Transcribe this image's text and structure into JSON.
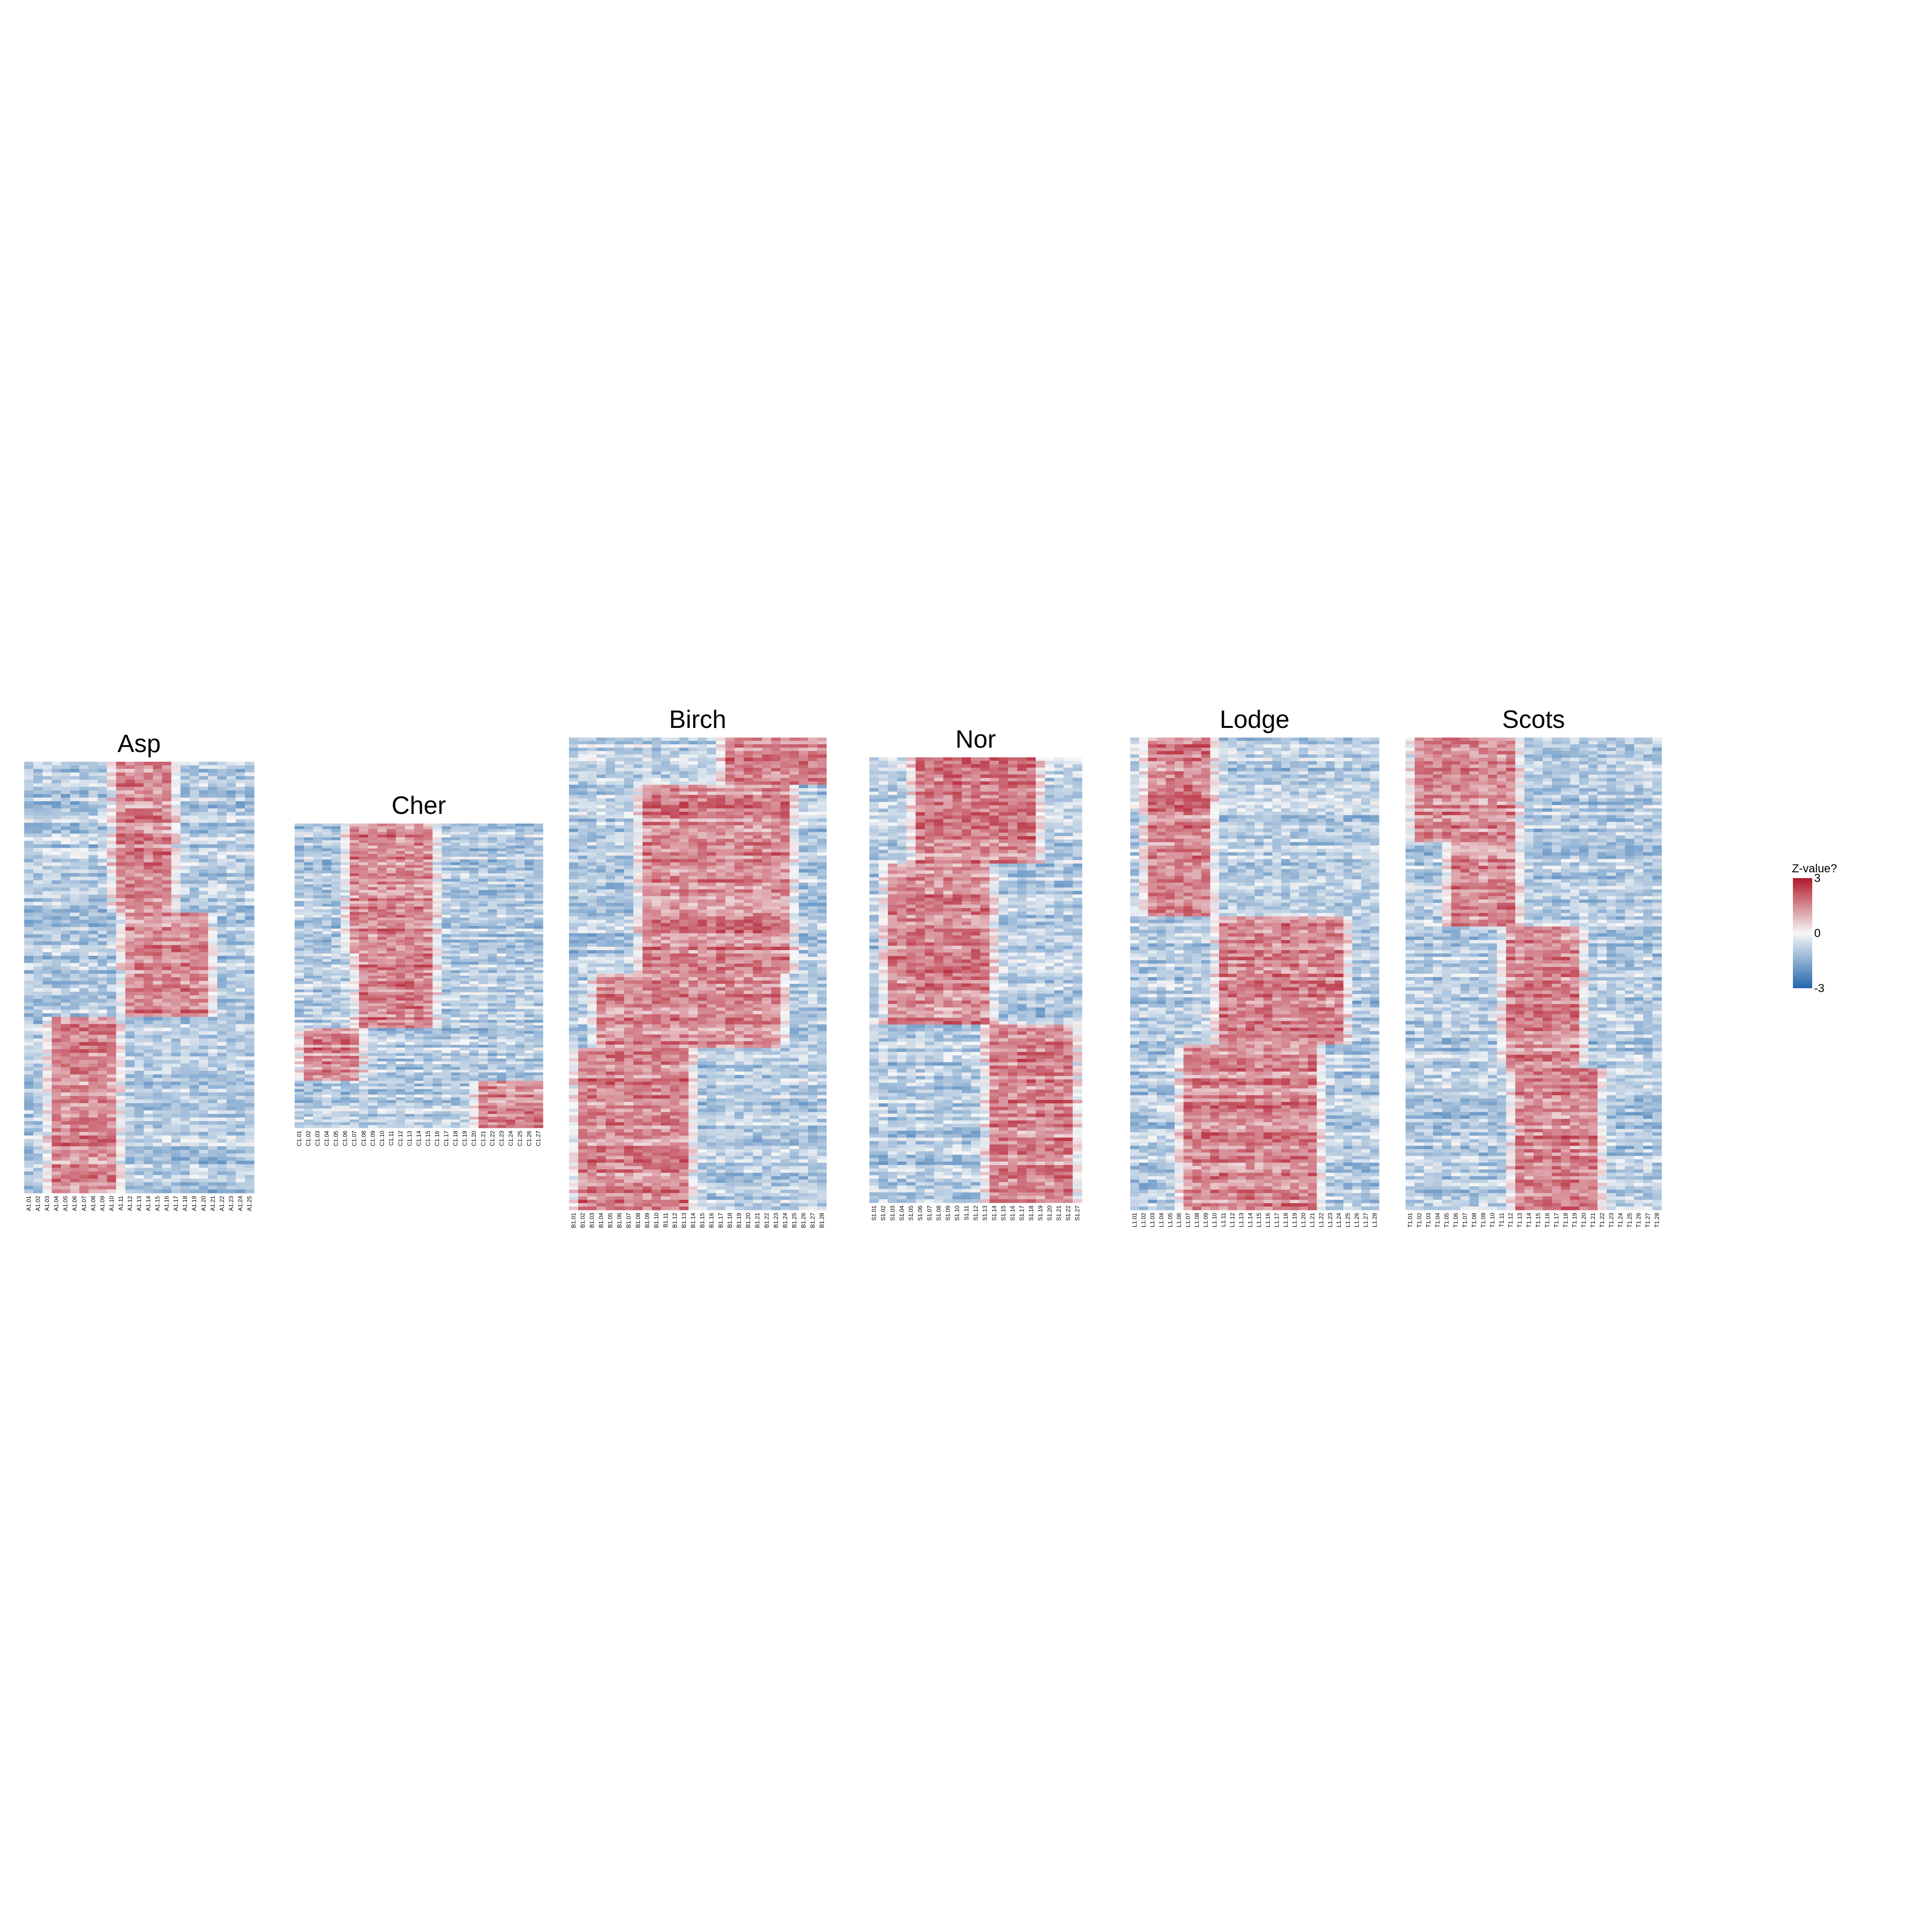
{
  "chart_data": [
    {
      "type": "heatmap",
      "title": "Asp",
      "columns": [
        "A1.01",
        "A1.02",
        "A1.03",
        "A1.04",
        "A1.05",
        "A1.06",
        "A1.07",
        "A1.08",
        "A1.09",
        "A1.10",
        "A1.11",
        "A1.12",
        "A1.13",
        "A1.14",
        "A1.15",
        "A1.16",
        "A1.17",
        "A1.18",
        "A1.19",
        "A1.20",
        "A1.21",
        "A1.22",
        "A1.23",
        "A1.24",
        "A1.25"
      ],
      "row_count": 120,
      "clusters": [
        {
          "rows": [
            0.0,
            0.35
          ],
          "high_cols": [
            10,
            15
          ]
        },
        {
          "rows": [
            0.35,
            0.59
          ],
          "high_cols": [
            11,
            19
          ]
        },
        {
          "rows": [
            0.59,
            1.0
          ],
          "high_cols": [
            3,
            9
          ]
        }
      ],
      "value_range": [
        -3,
        3
      ]
    },
    {
      "type": "heatmap",
      "title": "Cher",
      "columns": [
        "C1.01",
        "C1.02",
        "C1.03",
        "C1.04",
        "C1.05",
        "C1.06",
        "C1.07",
        "C1.08",
        "C1.09",
        "C1.10",
        "C1.11",
        "C1.12",
        "C1.13",
        "C1.14",
        "C1.15",
        "C1.16",
        "C1.17",
        "C1.18",
        "C1.19",
        "C1.20",
        "C1.21",
        "C1.22",
        "C1.23",
        "C1.24",
        "C1.25",
        "C1.26",
        "C1.27"
      ],
      "row_count": 110,
      "clusters": [
        {
          "rows": [
            0.0,
            0.43
          ],
          "high_cols": [
            6,
            14
          ]
        },
        {
          "rows": [
            0.43,
            0.67
          ],
          "high_cols": [
            7,
            14
          ]
        },
        {
          "rows": [
            0.67,
            0.85
          ],
          "high_cols": [
            1,
            6
          ]
        },
        {
          "rows": [
            0.85,
            1.0
          ],
          "high_cols": [
            20,
            26
          ]
        }
      ],
      "value_range": [
        -3,
        3
      ]
    },
    {
      "type": "heatmap",
      "title": "Birch",
      "columns": [
        "B1.01",
        "B1.02",
        "B1.03",
        "B1.04",
        "B1.05",
        "B1.06",
        "B1.07",
        "B1.08",
        "B1.09",
        "B1.10",
        "B1.11",
        "B1.12",
        "B1.13",
        "B1.14",
        "B1.15",
        "B1.16",
        "B1.17",
        "B1.18",
        "B1.19",
        "B1.20",
        "B1.21",
        "B1.22",
        "B1.23",
        "B1.24",
        "B1.25",
        "B1.26",
        "B1.27",
        "B1.28"
      ],
      "row_count": 140,
      "clusters": [
        {
          "rows": [
            0.0,
            0.1
          ],
          "high_cols": [
            17,
            27
          ]
        },
        {
          "rows": [
            0.1,
            0.5
          ],
          "high_cols": [
            8,
            23
          ]
        },
        {
          "rows": [
            0.5,
            0.66
          ],
          "high_cols": [
            3,
            22
          ]
        },
        {
          "rows": [
            0.66,
            1.0
          ],
          "high_cols": [
            1,
            12
          ]
        }
      ],
      "value_range": [
        -3,
        3
      ]
    },
    {
      "type": "heatmap",
      "title": "Nor",
      "columns": [
        "S1.01",
        "S1.02",
        "S1.03",
        "S1.04",
        "S1.05",
        "S1.06",
        "S1.07",
        "S1.08",
        "S1.09",
        "S1.10",
        "S1.11",
        "S1.12",
        "S1.13",
        "S1.14",
        "S1.15",
        "S1.16",
        "S1.17",
        "S1.18",
        "S1.19",
        "S1.20",
        "S1.21",
        "S1.22",
        "S1.27"
      ],
      "row_count": 130,
      "clusters": [
        {
          "rows": [
            0.0,
            0.24
          ],
          "high_cols": [
            5,
            17
          ]
        },
        {
          "rows": [
            0.24,
            0.6
          ],
          "high_cols": [
            2,
            12
          ]
        },
        {
          "rows": [
            0.6,
            1.0
          ],
          "high_cols": [
            13,
            21
          ]
        }
      ],
      "value_range": [
        -3,
        3
      ]
    },
    {
      "type": "heatmap",
      "title": "Lodge",
      "columns": [
        "L1.01",
        "L1.02",
        "L1.03",
        "L1.04",
        "L1.05",
        "L1.06",
        "L1.07",
        "L1.08",
        "L1.09",
        "L1.10",
        "L1.11",
        "L1.12",
        "L1.13",
        "L1.14",
        "L1.15",
        "L1.16",
        "L1.17",
        "L1.18",
        "L1.19",
        "L1.20",
        "L1.21",
        "L1.22",
        "L1.23",
        "L1.24",
        "L1.25",
        "L1.26",
        "L1.27",
        "L1.28"
      ],
      "row_count": 140,
      "clusters": [
        {
          "rows": [
            0.0,
            0.38
          ],
          "high_cols": [
            2,
            8
          ]
        },
        {
          "rows": [
            0.38,
            0.65
          ],
          "high_cols": [
            10,
            23
          ]
        },
        {
          "rows": [
            0.65,
            1.0
          ],
          "high_cols": [
            6,
            20
          ]
        }
      ],
      "value_range": [
        -3,
        3
      ]
    },
    {
      "type": "heatmap",
      "title": "Scots",
      "columns": [
        "T1.01",
        "T1.02",
        "T1.03",
        "T1.04",
        "T1.05",
        "T1.06",
        "T1.07",
        "T1.08",
        "T1.09",
        "T1.10",
        "T1.11",
        "T1.12",
        "T1.13",
        "T1.14",
        "T1.15",
        "T1.16",
        "T1.17",
        "T1.18",
        "T1.19",
        "T1.20",
        "T1.21",
        "T1.22",
        "T1.23",
        "T1.24",
        "T1.25",
        "T1.26",
        "T1.27",
        "T1.28"
      ],
      "row_count": 140,
      "clusters": [
        {
          "rows": [
            0.0,
            0.22
          ],
          "high_cols": [
            1,
            11
          ]
        },
        {
          "rows": [
            0.22,
            0.4
          ],
          "high_cols": [
            5,
            11
          ]
        },
        {
          "rows": [
            0.4,
            0.7
          ],
          "high_cols": [
            11,
            18
          ]
        },
        {
          "rows": [
            0.7,
            1.0
          ],
          "high_cols": [
            12,
            20
          ]
        }
      ],
      "value_range": [
        -3,
        3
      ]
    }
  ],
  "legend": {
    "title": "Z-value?",
    "ticks": [
      "3",
      "0",
      "-3"
    ],
    "colors": {
      "low": "#2166ac",
      "mid": "#f7f7f7",
      "high": "#b2182b"
    }
  }
}
